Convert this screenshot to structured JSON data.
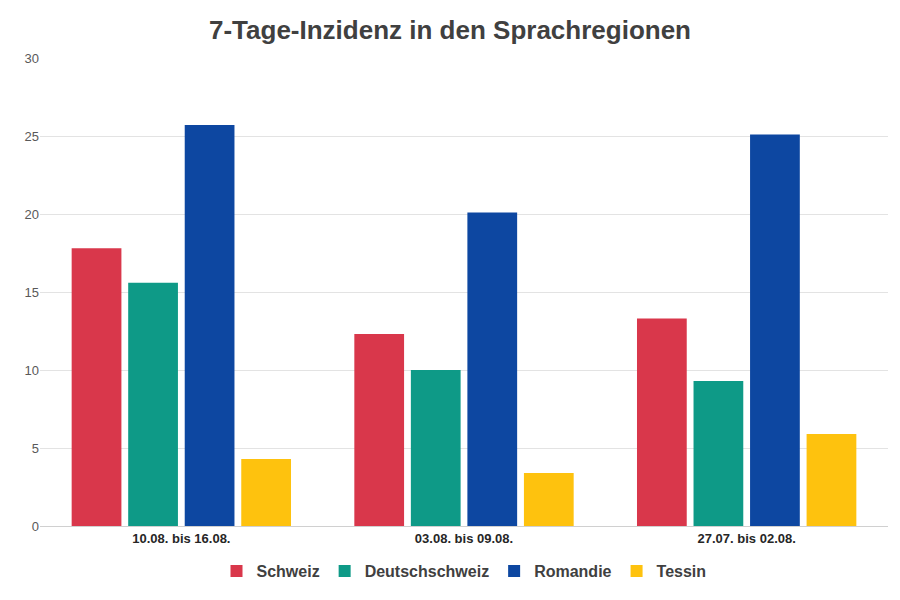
{
  "chart_data": {
    "type": "bar",
    "title": "7-Tage-Inzidenz in den Sprachregionen",
    "categories": [
      "10.08. bis 16.08.",
      "03.08. bis 09.08.",
      "27.07. bis 02.08."
    ],
    "series": [
      {
        "name": "Schweiz",
        "color": "#d9374b",
        "values": [
          17.8,
          12.3,
          13.3
        ]
      },
      {
        "name": "Deutschschweiz",
        "color": "#0e9a87",
        "values": [
          15.6,
          10.0,
          9.3
        ]
      },
      {
        "name": "Romandie",
        "color": "#0d47a1",
        "values": [
          25.7,
          20.1,
          25.1
        ]
      },
      {
        "name": "Tessin",
        "color": "#fec20e",
        "values": [
          4.3,
          3.4,
          5.9
        ]
      }
    ],
    "ylim": [
      0,
      30
    ],
    "yticks": [
      0,
      5,
      10,
      15,
      20,
      25,
      30
    ],
    "grid": true,
    "legend": "bottom"
  }
}
